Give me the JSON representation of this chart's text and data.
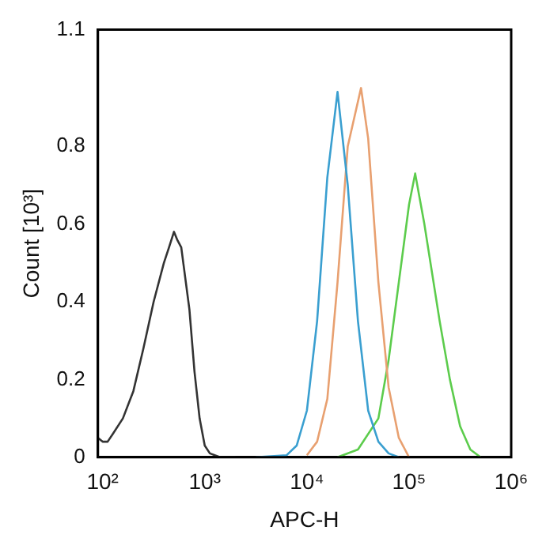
{
  "chart_data": {
    "type": "line",
    "xlabel": "APC-H",
    "ylabel": "Count [10³]",
    "log": "x",
    "xlim": [
      90,
      1000000
    ],
    "xticks": [
      {
        "value": 100,
        "label": "10²"
      },
      {
        "value": 1000,
        "label": "10³"
      },
      {
        "value": 10000,
        "label": "10⁴"
      },
      {
        "value": 100000,
        "label": "10⁵"
      },
      {
        "value": 1000000,
        "label": "10⁶"
      }
    ],
    "ylim": [
      0,
      1.1
    ],
    "yticks": [
      0,
      0.2,
      0.4,
      0.6,
      0.8,
      1.1
    ],
    "grid": false,
    "legend": false,
    "marker": "none",
    "line_style": "solid",
    "series": [
      {
        "color": "#333333",
        "x": [
          90,
          100,
          112,
          126,
          158,
          200,
          251,
          316,
          398,
          447,
          500,
          537,
          589,
          631,
          708,
          794,
          891,
          1000,
          1122,
          1413,
          2000
        ],
        "values": [
          0.05,
          0.04,
          0.04,
          0.06,
          0.1,
          0.17,
          0.28,
          0.4,
          0.5,
          0.54,
          0.58,
          0.56,
          0.54,
          0.48,
          0.38,
          0.22,
          0.1,
          0.03,
          0.01,
          0,
          0
        ]
      },
      {
        "color": "#3a9fd0",
        "x": [
          3162,
          6310,
          7943,
          10000,
          12589,
          15849,
          19953,
          25119,
          31623,
          39811,
          50119,
          63096,
          79433
        ],
        "values": [
          0,
          0.005,
          0.03,
          0.12,
          0.35,
          0.72,
          0.94,
          0.7,
          0.35,
          0.12,
          0.04,
          0.01,
          0
        ]
      },
      {
        "color": "#e8a070",
        "x": [
          10000,
          12589,
          15849,
          19953,
          25119,
          33884,
          39811,
          50119,
          63096,
          79433,
          100000
        ],
        "values": [
          0.005,
          0.04,
          0.15,
          0.45,
          0.8,
          0.95,
          0.82,
          0.45,
          0.18,
          0.05,
          0
        ]
      },
      {
        "color": "#5ccc4c",
        "x": [
          19953,
          31623,
          50119,
          63096,
          79433,
          100000,
          114815,
          141254,
          199526,
          251189,
          316228,
          398107,
          501187
        ],
        "values": [
          0,
          0.02,
          0.1,
          0.25,
          0.45,
          0.65,
          0.73,
          0.6,
          0.35,
          0.2,
          0.08,
          0.02,
          0
        ]
      }
    ]
  }
}
